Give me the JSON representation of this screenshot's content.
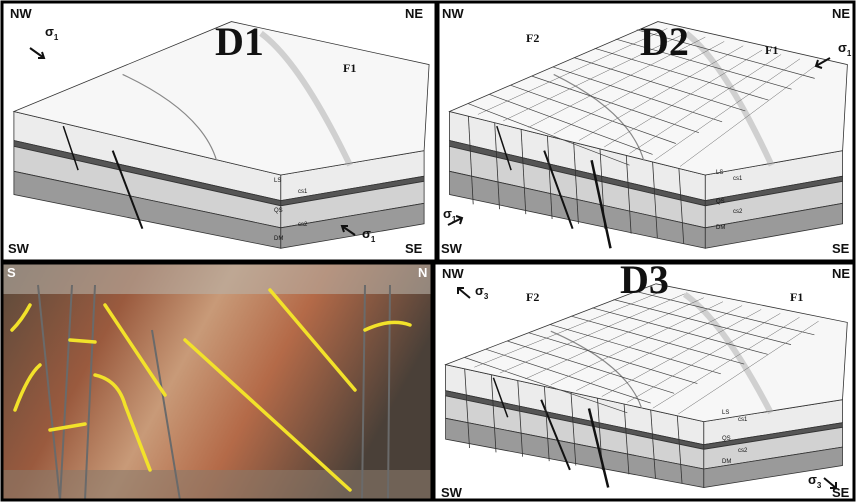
{
  "panels": [
    {
      "title": "D1",
      "corners": [
        "NW",
        "NE",
        "SW",
        "SE"
      ],
      "folds": [
        "F1"
      ],
      "stress": [
        {
          "symbol": "σ",
          "sub": "1"
        },
        {
          "symbol": "σ",
          "sub": "1"
        }
      ],
      "units": [
        "LS",
        "QS",
        "DM"
      ],
      "contacts": [
        "cs1",
        "cs2"
      ]
    },
    {
      "title": "D2",
      "corners": [
        "NW",
        "NE",
        "SW",
        "SE"
      ],
      "folds": [
        "F2",
        "F1"
      ],
      "stress": [
        {
          "symbol": "σ",
          "sub": "1"
        },
        {
          "symbol": "σ",
          "sub": "1"
        }
      ],
      "units": [
        "LS",
        "QS",
        "DM"
      ],
      "contacts": [
        "cs1",
        "cs2"
      ]
    },
    {
      "title": "D3",
      "corners": [
        "NW",
        "NE",
        "SW",
        "SE"
      ],
      "folds": [
        "F2",
        "F1"
      ],
      "stress": [
        {
          "symbol": "σ",
          "sub": "3"
        },
        {
          "symbol": "σ",
          "sub": "3"
        }
      ],
      "units": [
        "LS",
        "QS",
        "DM"
      ],
      "contacts": [
        "cs1",
        "cs2"
      ]
    }
  ],
  "photo": {
    "left": "S",
    "right": "N"
  }
}
